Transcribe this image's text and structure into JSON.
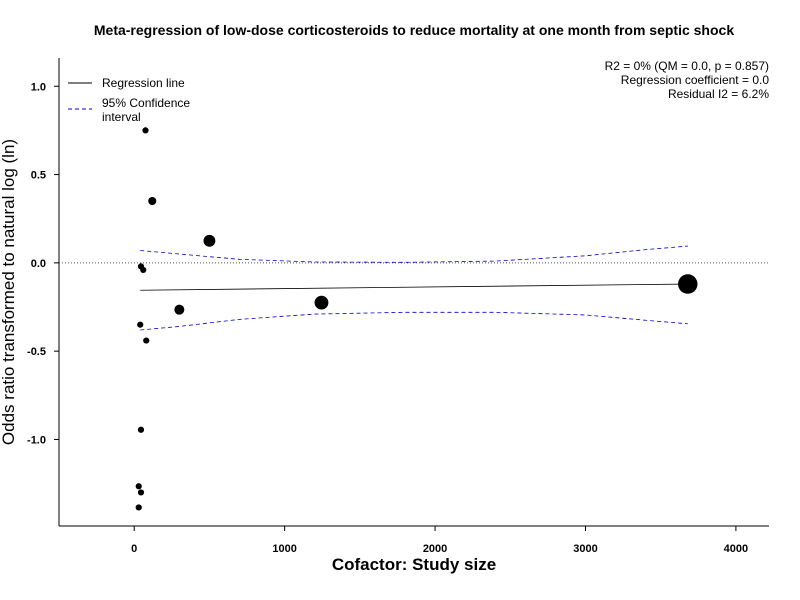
{
  "chart_data": {
    "type": "scatter",
    "title": "Meta-regression of  low-dose corticosteroids to reduce mortality at one month from septic shock",
    "xlabel": "Cofactor:  Study size",
    "ylabel": "Odds ratio transformed to natural log (ln)",
    "xlim": [
      -500,
      4220
    ],
    "ylim": [
      -1.49,
      1.16
    ],
    "x_ticks": [
      0,
      1000,
      2000,
      3000,
      4000
    ],
    "x_tick_labels": [
      "0",
      "1000",
      "2000",
      "3000",
      "4000"
    ],
    "y_ticks": [
      1.0,
      0.5,
      0.0,
      -0.5,
      -1.0
    ],
    "y_tick_labels": [
      "1.0",
      "0.5",
      "0.0",
      "-0.5",
      "-1.0"
    ],
    "grid": false,
    "legend": {
      "position": "top-left",
      "entries": [
        {
          "label": "Regression line",
          "style": "solid",
          "color": "#000000"
        },
        {
          "label": "95% Confidence",
          "label2": "interval",
          "style": "dashed",
          "color": "#0000cc"
        }
      ]
    },
    "annotations": [
      "R2 = 0% (QM = 0.0, p = 0.857)",
      "Regression coefficient = 0.0",
      "Residual I2 = 6.2%"
    ],
    "reference_line": {
      "y": 0.0,
      "style": "dotted",
      "color": "#555555"
    },
    "points": [
      {
        "x": 75,
        "y": 0.75,
        "weight": 2
      },
      {
        "x": 120,
        "y": 0.35,
        "weight": 3
      },
      {
        "x": 500,
        "y": 0.125,
        "weight": 5
      },
      {
        "x": 45,
        "y": -0.02,
        "weight": 2
      },
      {
        "x": 60,
        "y": -0.04,
        "weight": 2
      },
      {
        "x": 300,
        "y": -0.265,
        "weight": 4
      },
      {
        "x": 1245,
        "y": -0.225,
        "weight": 6
      },
      {
        "x": 3680,
        "y": -0.12,
        "weight": 9
      },
      {
        "x": 40,
        "y": -0.35,
        "weight": 2
      },
      {
        "x": 80,
        "y": -0.44,
        "weight": 2
      },
      {
        "x": 45,
        "y": -0.945,
        "weight": 2
      },
      {
        "x": 30,
        "y": -1.265,
        "weight": 2
      },
      {
        "x": 45,
        "y": -1.3,
        "weight": 2
      },
      {
        "x": 30,
        "y": -1.385,
        "weight": 2
      }
    ],
    "regression_line": {
      "x": [
        40,
        3680
      ],
      "y": [
        -0.155,
        -0.12
      ]
    },
    "ci_upper": {
      "x": [
        40,
        300,
        700,
        1200,
        1800,
        2400,
        3000,
        3400,
        3680
      ],
      "y": [
        0.07,
        0.05,
        0.02,
        0.005,
        0.003,
        0.01,
        0.04,
        0.075,
        0.095
      ]
    },
    "ci_lower": {
      "x": [
        40,
        300,
        700,
        1200,
        1800,
        2400,
        3000,
        3400,
        3680
      ],
      "y": [
        -0.38,
        -0.36,
        -0.32,
        -0.29,
        -0.28,
        -0.28,
        -0.295,
        -0.325,
        -0.345
      ]
    }
  }
}
